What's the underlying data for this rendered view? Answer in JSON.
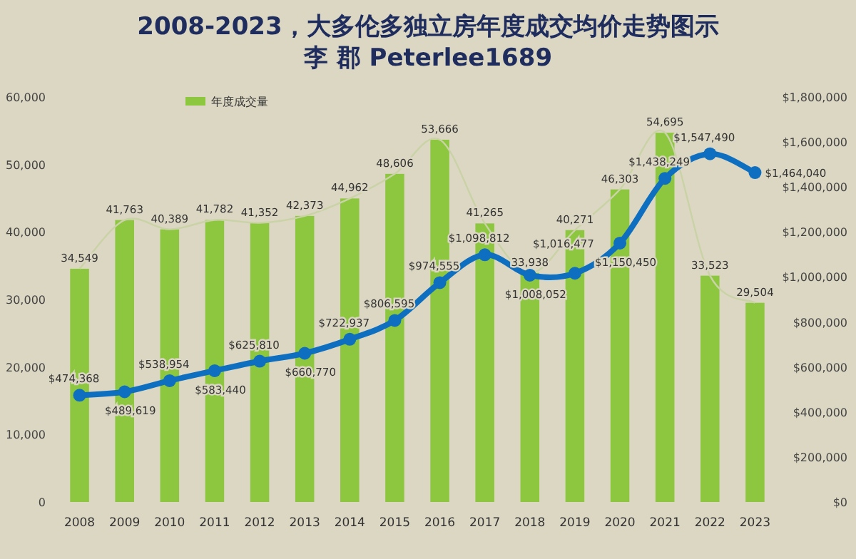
{
  "chart_data": {
    "type": "bar",
    "title": "2008-2023，大多伦多独立房年度成交均价走势图示",
    "subtitle": "李 郡  Peterlee1689",
    "categories": [
      "2008",
      "2009",
      "2010",
      "2011",
      "2012",
      "2013",
      "2014",
      "2015",
      "2016",
      "2017",
      "2018",
      "2019",
      "2020",
      "2021",
      "2022",
      "2023"
    ],
    "series": [
      {
        "name": "年度成交量",
        "color": "#8dc63f",
        "values": [
          34549,
          41763,
          40389,
          41782,
          41352,
          42373,
          44962,
          48606,
          53666,
          41265,
          33938,
          40271,
          46303,
          54695,
          33523,
          29504
        ],
        "value_labels": [
          "34,549",
          "41,763",
          "40,389",
          "41,782",
          "41,352",
          "42,373",
          "44,962",
          "48,606",
          "53,666",
          "41,265",
          "33,938",
          "40,271",
          "46,303",
          "54,695",
          "33,523",
          "29,504"
        ]
      },
      {
        "type": "line",
        "color": "#c9d3a6",
        "values": [
          34549,
          41763,
          40389,
          41782,
          41352,
          42373,
          44962,
          48606,
          53666,
          41265,
          33938,
          40271,
          46303,
          54695,
          33523,
          29504
        ]
      },
      {
        "type": "line",
        "axis": "y2",
        "color": "#0e6fc1",
        "marker": "circle",
        "values": [
          474368,
          489619,
          538954,
          583440,
          625810,
          660770,
          722937,
          806595,
          974555,
          1098812,
          1008052,
          1016477,
          1150450,
          1438249,
          1547490,
          1464040
        ],
        "value_labels": [
          "$474,368",
          "$489,619",
          "$538,954",
          "$583,440",
          "$625,810",
          "$660,770",
          "$722,937",
          "$806,595",
          "$974,555",
          "$1,098,812",
          "$1,008,052",
          "$1,016,477",
          "$1,150,450",
          "$1,438,249",
          "$1,547,490",
          "$1,464,040"
        ]
      }
    ],
    "ylim": [
      0,
      60000
    ],
    "yticks": [
      {
        "value": 0,
        "label": "0"
      },
      {
        "value": 10000,
        "label": "10,000"
      },
      {
        "value": 20000,
        "label": "20,000"
      },
      {
        "value": 30000,
        "label": "30,000"
      },
      {
        "value": 40000,
        "label": "40,000"
      },
      {
        "value": 50000,
        "label": "50,000"
      },
      {
        "value": 60000,
        "label": "60,000"
      }
    ],
    "y2lim": [
      0,
      1800000
    ],
    "y2ticks": [
      {
        "value": 0,
        "label": "$0"
      },
      {
        "value": 200000,
        "label": "$200,000"
      },
      {
        "value": 400000,
        "label": "$400,000"
      },
      {
        "value": 600000,
        "label": "$600,000"
      },
      {
        "value": 800000,
        "label": "$800,000"
      },
      {
        "value": 1000000,
        "label": "$1,000,000"
      },
      {
        "value": 1200000,
        "label": "$1,200,000"
      },
      {
        "value": 1400000,
        "label": "$1,400,000"
      },
      {
        "value": 1600000,
        "label": "$1,600,000"
      },
      {
        "value": 1800000,
        "label": "$1,800,000"
      }
    ],
    "legend": "top left",
    "grid": false
  }
}
